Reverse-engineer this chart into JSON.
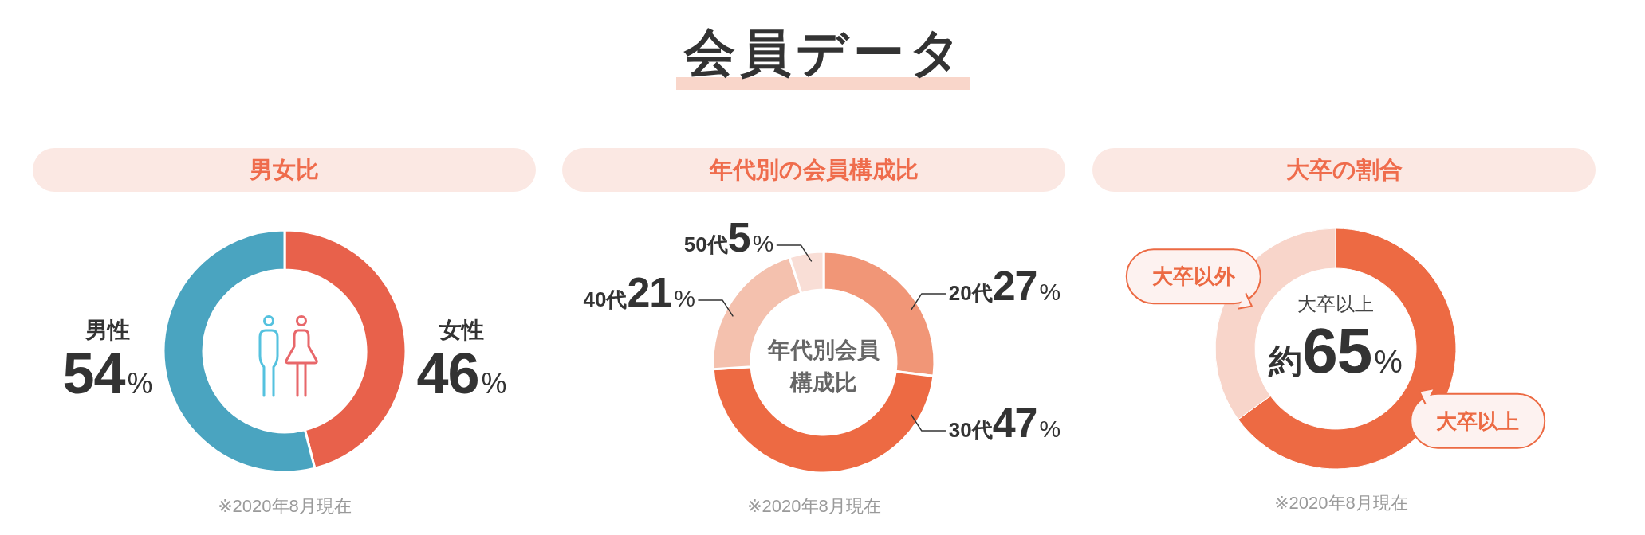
{
  "chart_data": [
    {
      "type": "other",
      "title": "会員データ"
    },
    {
      "type": "donut",
      "title": "男女比",
      "categories": [
        "女性",
        "男性"
      ],
      "values": [
        46,
        54
      ],
      "colors": [
        "#e8614b",
        "#4aa4c0"
      ],
      "value_labels": [
        "46%",
        "54%"
      ],
      "annotations": [
        "※2020年8月現在"
      ]
    },
    {
      "type": "donut",
      "title": "年代別の会員構成比",
      "categories": [
        "20代",
        "30代",
        "40代",
        "50代"
      ],
      "values": [
        27,
        47,
        21,
        5
      ],
      "colors": [
        "#f19677",
        "#ed6a43",
        "#f4c1ae",
        "#f9ded6"
      ],
      "value_labels": [
        "27%",
        "47%",
        "21%",
        "5%"
      ],
      "annotations": [
        "年代別会員構成比",
        "※2020年8月現在"
      ]
    },
    {
      "type": "donut",
      "title": "大卒の割合",
      "categories": [
        "大卒以上",
        "大卒以外"
      ],
      "values": [
        65,
        35
      ],
      "colors": [
        "#ed6a43",
        "#f8d5ca"
      ],
      "value_labels": [
        "約65%",
        null
      ],
      "annotations": [
        "大卒以上",
        "※2020年8月現在"
      ]
    }
  ]
}
